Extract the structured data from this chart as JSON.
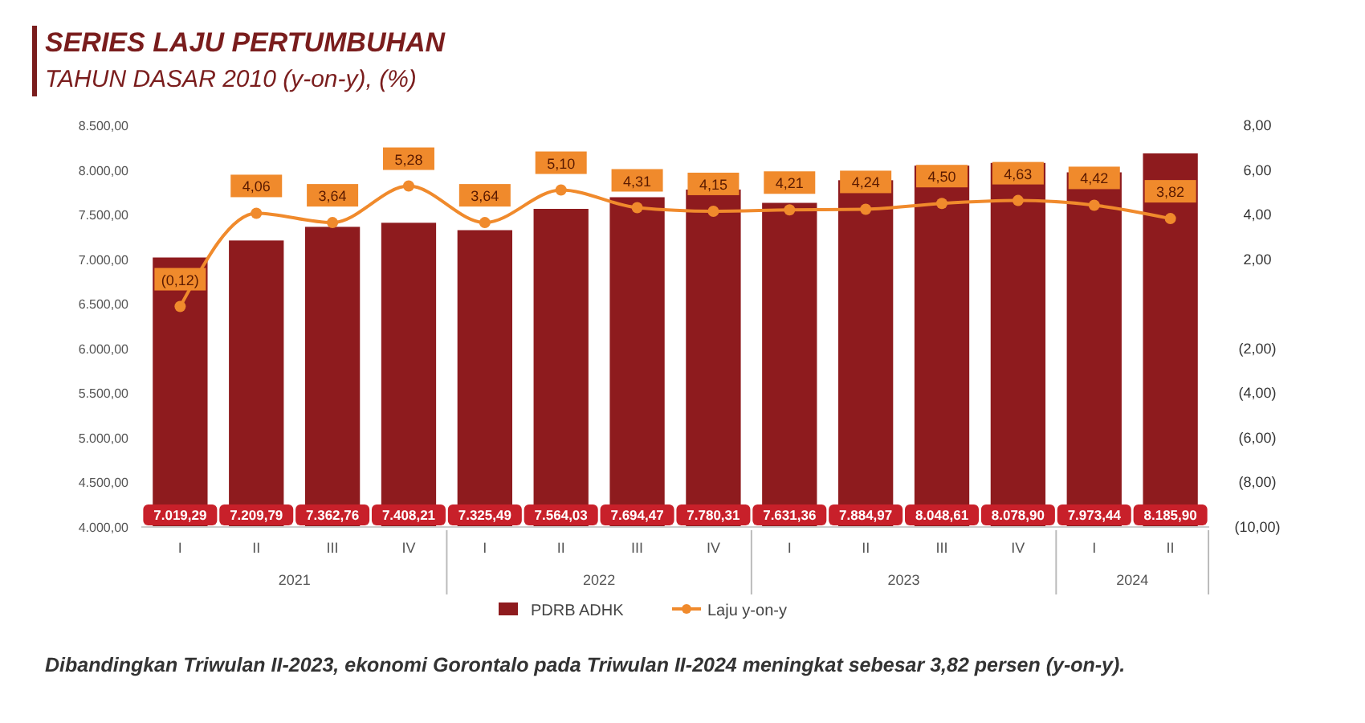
{
  "chart_data": {
    "type": "bar",
    "title": "SERIES LAJU PERTUMBUHAN",
    "subtitle": "TAHUN DASAR 2010 (y-on-y), (%)",
    "categories": [
      "I",
      "II",
      "III",
      "IV",
      "I",
      "II",
      "III",
      "IV",
      "I",
      "II",
      "III",
      "IV",
      "I",
      "II"
    ],
    "series": [
      {
        "name": "PDRB ADHK",
        "color": "#8e1b1e",
        "values": [
          7019.29,
          7209.79,
          7362.76,
          7408.21,
          7325.49,
          7564.03,
          7694.47,
          7780.31,
          7631.36,
          7884.97,
          8048.61,
          8078.9,
          7973.44,
          8185.9
        ],
        "value_labels": [
          "7.019,29",
          "7.209,79",
          "7.362,76",
          "7.408,21",
          "7.325,49",
          "7.564,03",
          "7.694,47",
          "7.780,31",
          "7.631,36",
          "7.884,97",
          "8.048,61",
          "8.078,90",
          "7.973,44",
          "8.185,90"
        ]
      },
      {
        "name": "Laju y-on-y",
        "type": "line",
        "axis": "y2",
        "color": "#f08a2c",
        "values": [
          -0.12,
          4.06,
          3.64,
          5.28,
          3.64,
          5.1,
          4.31,
          4.15,
          4.21,
          4.24,
          4.5,
          4.63,
          4.42,
          3.82
        ],
        "value_labels": [
          "(0,12)",
          "4,06",
          "3,64",
          "5,28",
          "3,64",
          "5,10",
          "4,31",
          "4,15",
          "4,21",
          "4,24",
          "4,50",
          "4,63",
          "4,42",
          "3,82"
        ]
      }
    ],
    "ylim": [
      4000,
      8500
    ],
    "yticks": [
      {
        "value": 4000,
        "label": "4.000,00"
      },
      {
        "value": 4500,
        "label": "4.500,00"
      },
      {
        "value": 5000,
        "label": "5.000,00"
      },
      {
        "value": 5500,
        "label": "5.500,00"
      },
      {
        "value": 6000,
        "label": "6.000,00"
      },
      {
        "value": 6500,
        "label": "6.500,00"
      },
      {
        "value": 7000,
        "label": "7.000,00"
      },
      {
        "value": 7500,
        "label": "7.500,00"
      },
      {
        "value": 8000,
        "label": "8.000,00"
      },
      {
        "value": 8500,
        "label": "8.500,00"
      }
    ],
    "y2lim": [
      -10,
      8
    ],
    "y2ticks": [
      {
        "value": -10,
        "label": "(10,00)"
      },
      {
        "value": -8,
        "label": "(8,00)"
      },
      {
        "value": -6,
        "label": "(6,00)"
      },
      {
        "value": -4,
        "label": "(4,00)"
      },
      {
        "value": -2,
        "label": "(2,00)"
      },
      {
        "value": 2,
        "label": "2,00"
      },
      {
        "value": 4,
        "label": "4,00"
      },
      {
        "value": 6,
        "label": "6,00"
      },
      {
        "value": 8,
        "label": "8,00"
      }
    ],
    "data_labels": true,
    "marker": "circle",
    "legend": "bottom",
    "annotations": [
      "2021",
      "2022",
      "2023",
      "2024",
      "Dibandingkan Triwulan II-2023, ekonomi Gorontalo pada Triwulan II-2024 meningkat sebesar 3,82 persen (y-on-y)."
    ]
  }
}
